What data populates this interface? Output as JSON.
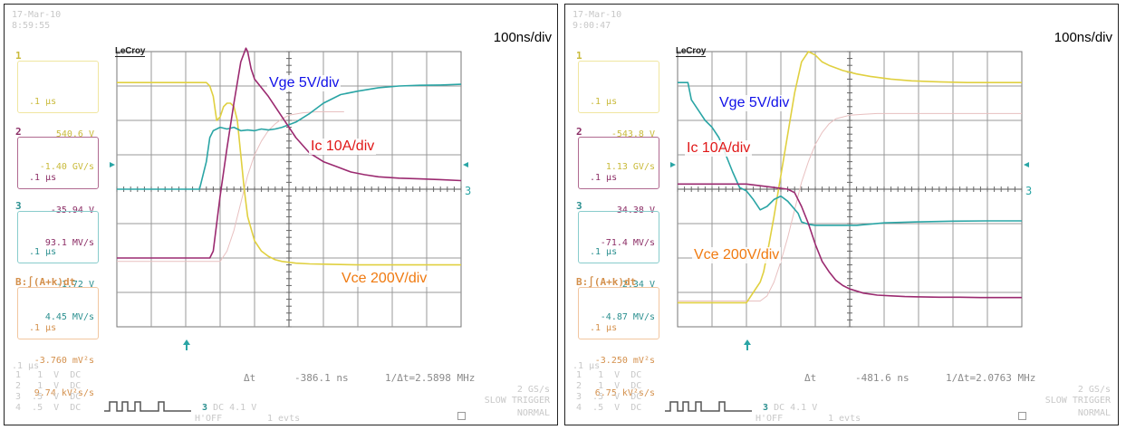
{
  "chart_data": [
    {
      "type": "line",
      "panel": "left",
      "date": "17-Mar-10",
      "time": "8:59:55",
      "timebase_label": "100ns/div",
      "logo": "LeCroy",
      "channels": [
        {
          "num": "1",
          "tb": ".1 µs",
          "v": "540.6 V",
          "slope": "-1.40 GV/s"
        },
        {
          "num": "2",
          "tb": ".1 µs",
          "v": "-35.94 V",
          "slope": "93.1 MV/s"
        },
        {
          "num": "3",
          "tb": ".1 µs",
          "v": "-1.72 V",
          "slope": "4.45 MV/s"
        },
        {
          "num": "4",
          "title": "B:∫(A+k)dt",
          "tb": ".1 µs",
          "v": "-3.760 mV²s",
          "slope": "9.74 kV²s/s"
        }
      ],
      "trace_labels": {
        "vge": "Vge 5V/div",
        "ic": "Ic 10A/div",
        "vce": "Vce 200V/div"
      },
      "bottom_tb": ".1 µs",
      "dt_label": "Δt",
      "dt_value": "-386.1 ns",
      "freq_value": "1/Δt=2.5898 MHz",
      "sample_rate": "2 GS/s",
      "trigger_mode": "SLOW TRIGGER",
      "trigger_state": "NORMAL",
      "trigger_info": "DC 4.1 V",
      "trigger_ch": "3",
      "hoff": "H'OFF",
      "events": "1 evts",
      "channel_rows": [
        "1   1  V  DC",
        "2   1  V  DC",
        "3  .5  V  DC",
        "4  .5  V  DC"
      ],
      "x_unit": "ns",
      "x_range": [
        -200,
        800
      ],
      "y_range": [
        -4,
        4
      ],
      "grid": true,
      "series": [
        {
          "name": "Vge",
          "color": "#2aa5a5",
          "x": [
            -200,
            -50,
            40,
            45,
            60,
            70,
            80,
            100,
            120,
            140,
            160,
            180,
            200,
            220,
            240,
            260,
            280,
            320,
            360,
            400,
            450,
            500,
            560,
            620,
            680,
            740,
            800
          ],
          "y": [
            0,
            0,
            0,
            0.2,
            0.8,
            1.5,
            1.7,
            1.8,
            1.75,
            1.8,
            1.7,
            1.72,
            1.7,
            1.75,
            1.72,
            1.75,
            1.8,
            1.95,
            2.2,
            2.5,
            2.75,
            2.85,
            2.95,
            3.0,
            3.02,
            3.03,
            3.05
          ]
        },
        {
          "name": "Ic",
          "color": "#9b2a70",
          "x": [
            -200,
            70,
            80,
            100,
            120,
            140,
            160,
            175,
            180,
            190,
            200,
            240,
            280,
            320,
            360,
            400,
            440,
            480,
            520,
            560,
            620,
            680,
            740,
            800
          ],
          "y": [
            -2,
            -2,
            -1.8,
            -0.2,
            1.2,
            2.5,
            3.7,
            4.1,
            4.0,
            3.5,
            3.2,
            2.7,
            2.1,
            1.5,
            1.05,
            0.8,
            0.65,
            0.5,
            0.42,
            0.36,
            0.32,
            0.3,
            0.28,
            0.25
          ]
        },
        {
          "name": "Vce",
          "color": "#e0d040",
          "x": [
            -200,
            60,
            70,
            80,
            90,
            100,
            110,
            120,
            130,
            140,
            150,
            160,
            170,
            180,
            200,
            220,
            240,
            260,
            280,
            320,
            360,
            400,
            500,
            600,
            700,
            800
          ],
          "y": [
            3.1,
            3.1,
            3.0,
            2.7,
            2.0,
            2.1,
            2.4,
            2.5,
            2.5,
            2.4,
            2.0,
            1.0,
            0.0,
            -0.8,
            -1.5,
            -1.8,
            -1.95,
            -2.05,
            -2.1,
            -2.15,
            -2.17,
            -2.18,
            -2.2,
            -2.2,
            -2.2,
            -2.2
          ]
        },
        {
          "name": "Math",
          "color": "#e8c0c0",
          "x": [
            -200,
            100,
            120,
            140,
            160,
            180,
            200,
            220,
            240,
            260,
            280,
            300,
            340,
            380,
            420,
            460
          ],
          "y": [
            -2.1,
            -2.1,
            -1.8,
            -1.2,
            -0.4,
            0.4,
            1.0,
            1.4,
            1.7,
            1.9,
            2.05,
            2.15,
            2.22,
            2.25,
            2.25,
            2.25
          ]
        }
      ]
    },
    {
      "type": "line",
      "panel": "right",
      "date": "17-Mar-10",
      "time": "9:00:47",
      "timebase_label": "100ns/div",
      "logo": "LeCroy",
      "channels": [
        {
          "num": "1",
          "tb": ".1 µs",
          "v": "-543.8 V",
          "slope": "1.13 GV/s"
        },
        {
          "num": "2",
          "tb": ".1 µs",
          "v": "34.38 V",
          "slope": "-71.4 MV/s"
        },
        {
          "num": "3",
          "tb": ".1 µs",
          "v": "2.34 V",
          "slope": "-4.87 MV/s"
        },
        {
          "num": "4",
          "title": "B:∫(A+k)dt",
          "tb": ".1 µs",
          "v": "-3.250 mV²s",
          "slope": "6.75 kV²s/s"
        }
      ],
      "trace_labels": {
        "vge": "Vge 5V/div",
        "ic": "Ic 10A/div",
        "vce": "Vce 200V/div"
      },
      "bottom_tb": ".1 µs",
      "dt_label": "Δt",
      "dt_value": "-481.6 ns",
      "freq_value": "1/Δt=2.0763 MHz",
      "sample_rate": "2 GS/s",
      "trigger_mode": "SLOW TRIGGER",
      "trigger_state": "NORMAL",
      "trigger_info": "DC 4.1 V",
      "trigger_ch": "3",
      "hoff": "H'OFF",
      "events": "1 evts",
      "channel_rows": [
        "1   1  V  DC",
        "2   1  V  DC",
        "3  .5  V  DC",
        "4  .5  V  DC"
      ],
      "x_unit": "ns",
      "x_range": [
        -200,
        800
      ],
      "y_range": [
        -4,
        4
      ],
      "grid": true,
      "series": [
        {
          "name": "Vge",
          "color": "#2aa5a5",
          "x": [
            -200,
            -170,
            -160,
            -140,
            -120,
            -100,
            -80,
            -60,
            -40,
            -20,
            0,
            20,
            40,
            60,
            80,
            100,
            120,
            150,
            160,
            180,
            200,
            260,
            320,
            400,
            500,
            600,
            700,
            800
          ],
          "y": [
            3.1,
            3.1,
            2.6,
            2.3,
            2.0,
            1.8,
            1.5,
            1.0,
            0.5,
            0.05,
            -0.05,
            -0.3,
            -0.6,
            -0.5,
            -0.3,
            -0.2,
            -0.35,
            -0.7,
            -0.95,
            -1.02,
            -1.05,
            -1.05,
            -1.05,
            -0.98,
            -0.95,
            -0.93,
            -0.92,
            -0.92
          ]
        },
        {
          "name": "Ic",
          "color": "#9b2a70",
          "x": [
            -200,
            0,
            40,
            80,
            120,
            140,
            160,
            180,
            200,
            220,
            240,
            260,
            280,
            300,
            340,
            380,
            420,
            460,
            500,
            560,
            620,
            680,
            740,
            800
          ],
          "y": [
            0.15,
            0.15,
            0.1,
            0.05,
            0.0,
            -0.1,
            -0.5,
            -1.0,
            -1.6,
            -2.1,
            -2.4,
            -2.65,
            -2.8,
            -2.9,
            -3.02,
            -3.08,
            -3.1,
            -3.12,
            -3.13,
            -3.14,
            -3.14,
            -3.15,
            -3.15,
            -3.15
          ]
        },
        {
          "name": "Vce",
          "color": "#e0d040",
          "x": [
            -200,
            0,
            20,
            40,
            50,
            60,
            80,
            100,
            120,
            140,
            160,
            180,
            200,
            220,
            240,
            280,
            320,
            360,
            420,
            480,
            560,
            640,
            720,
            800
          ],
          "y": [
            -3.3,
            -3.3,
            -3.0,
            -2.7,
            -2.4,
            -1.9,
            -0.8,
            0.4,
            1.6,
            2.8,
            3.7,
            4.0,
            3.9,
            3.7,
            3.6,
            3.45,
            3.35,
            3.28,
            3.2,
            3.15,
            3.12,
            3.1,
            3.1,
            3.1
          ]
        },
        {
          "name": "Math",
          "color": "#e8c0c0",
          "x": [
            -200,
            40,
            60,
            80,
            100,
            120,
            140,
            160,
            180,
            200,
            220,
            240,
            260,
            300,
            340,
            380,
            420,
            800
          ],
          "y": [
            -3.25,
            -3.25,
            -3.1,
            -2.7,
            -2.1,
            -1.4,
            -0.6,
            0.2,
            0.8,
            1.3,
            1.65,
            1.9,
            2.05,
            2.15,
            2.18,
            2.2,
            2.2,
            2.2
          ]
        }
      ]
    }
  ]
}
